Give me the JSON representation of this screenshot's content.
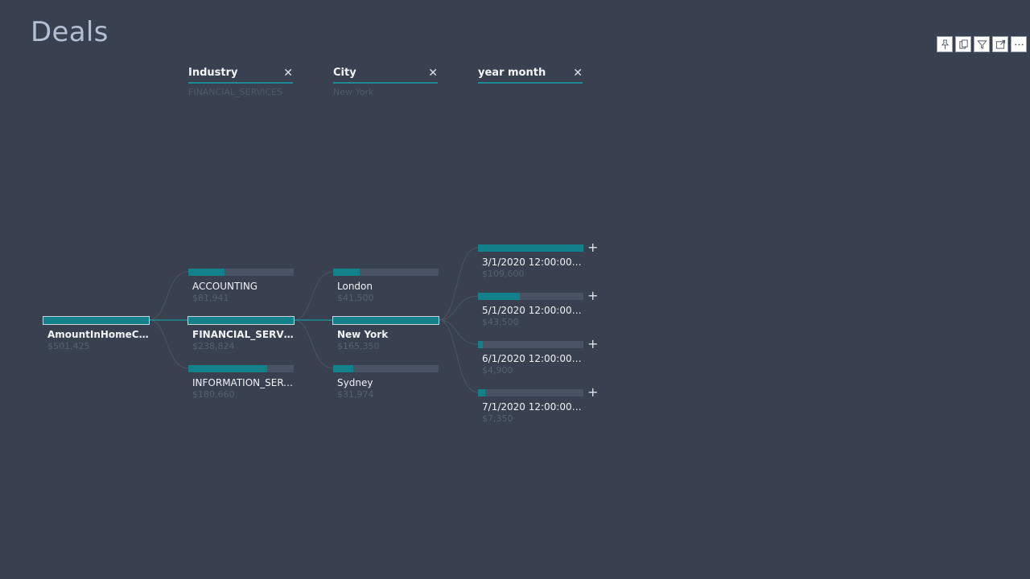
{
  "page": {
    "title": "Deals"
  },
  "toolbar": [
    {
      "name": "pin-icon"
    },
    {
      "name": "copy-icon"
    },
    {
      "name": "filter-icon"
    },
    {
      "name": "focus-mode-icon"
    },
    {
      "name": "more-options-icon"
    }
  ],
  "levels": [
    {
      "name": "Industry",
      "selected": "FINANCIAL_SERVICES"
    },
    {
      "name": "City",
      "selected": "New York"
    },
    {
      "name": "year month",
      "selected": ""
    }
  ],
  "root": {
    "label": "AmountInHomeCurr...",
    "value": "$501,425"
  },
  "industry_nodes": [
    {
      "label": "ACCOUNTING",
      "value": "$81,941",
      "fraction": 0.34
    },
    {
      "label": "FINANCIAL_SERVICES",
      "value": "$238,824",
      "fraction": 1.0
    },
    {
      "label": "INFORMATION_SERVI...",
      "value": "$180,660",
      "fraction": 0.75
    }
  ],
  "city_nodes": [
    {
      "label": "London",
      "value": "$41,500",
      "fraction": 0.25
    },
    {
      "label": "New York",
      "value": "$165,350",
      "fraction": 1.0
    },
    {
      "label": "Sydney",
      "value": "$31,974",
      "fraction": 0.19
    }
  ],
  "month_nodes": [
    {
      "label": "3/1/2020 12:00:00 AM",
      "value": "$109,600",
      "fraction": 1.0
    },
    {
      "label": "5/1/2020 12:00:00 AM",
      "value": "$43,500",
      "fraction": 0.4
    },
    {
      "label": "6/1/2020 12:00:00 AM",
      "value": "$4,900",
      "fraction": 0.045
    },
    {
      "label": "7/1/2020 12:00:00 AM",
      "value": "$7,350",
      "fraction": 0.067
    }
  ],
  "colors": {
    "background": "#394050",
    "accent": "#138189",
    "track": "#4a5364"
  }
}
